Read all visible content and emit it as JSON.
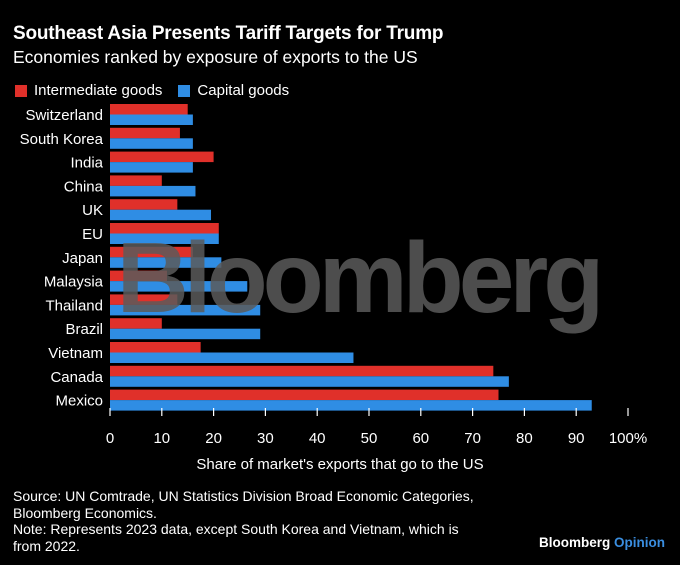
{
  "title": "Southeast Asia Presents Tariff Targets for Trump",
  "subtitle": "Economies ranked by exposure of exports to the US",
  "colors": {
    "intermediate": "#e0302a",
    "capital": "#2f8de4",
    "background": "#000000",
    "watermark": "#5a5a5a"
  },
  "watermark": "Bloomberg",
  "chart_data": {
    "type": "bar",
    "orientation": "horizontal",
    "categories": [
      "Switzerland",
      "South Korea",
      "India",
      "China",
      "UK",
      "EU",
      "Japan",
      "Malaysia",
      "Thailand",
      "Brazil",
      "Vietnam",
      "Canada",
      "Mexico"
    ],
    "series": [
      {
        "name": "Intermediate goods",
        "values": [
          15,
          13.5,
          20,
          10,
          13,
          21,
          16,
          11,
          13,
          10,
          17.5,
          74,
          75
        ]
      },
      {
        "name": "Capital goods",
        "values": [
          16,
          16,
          16,
          16.5,
          19.5,
          21,
          21.5,
          26.5,
          29,
          29,
          47,
          77,
          93
        ]
      }
    ],
    "xlabel": "Share of market's exports that go to the US",
    "xticks": [
      "0",
      "10",
      "20",
      "30",
      "40",
      "50",
      "60",
      "70",
      "80",
      "90",
      "100%"
    ],
    "xlim": [
      0,
      100
    ],
    "legend_position": "top-left"
  },
  "source_lines": [
    "Source: UN Comtrade, UN Statistics Division Broad Economic Categories,",
    "Bloomberg Economics.",
    "Note: Represents 2023 data, except South Korea and Vietnam, which is",
    "from 2022."
  ],
  "brand": {
    "main": "Bloomberg",
    "sub": "Opinion"
  }
}
